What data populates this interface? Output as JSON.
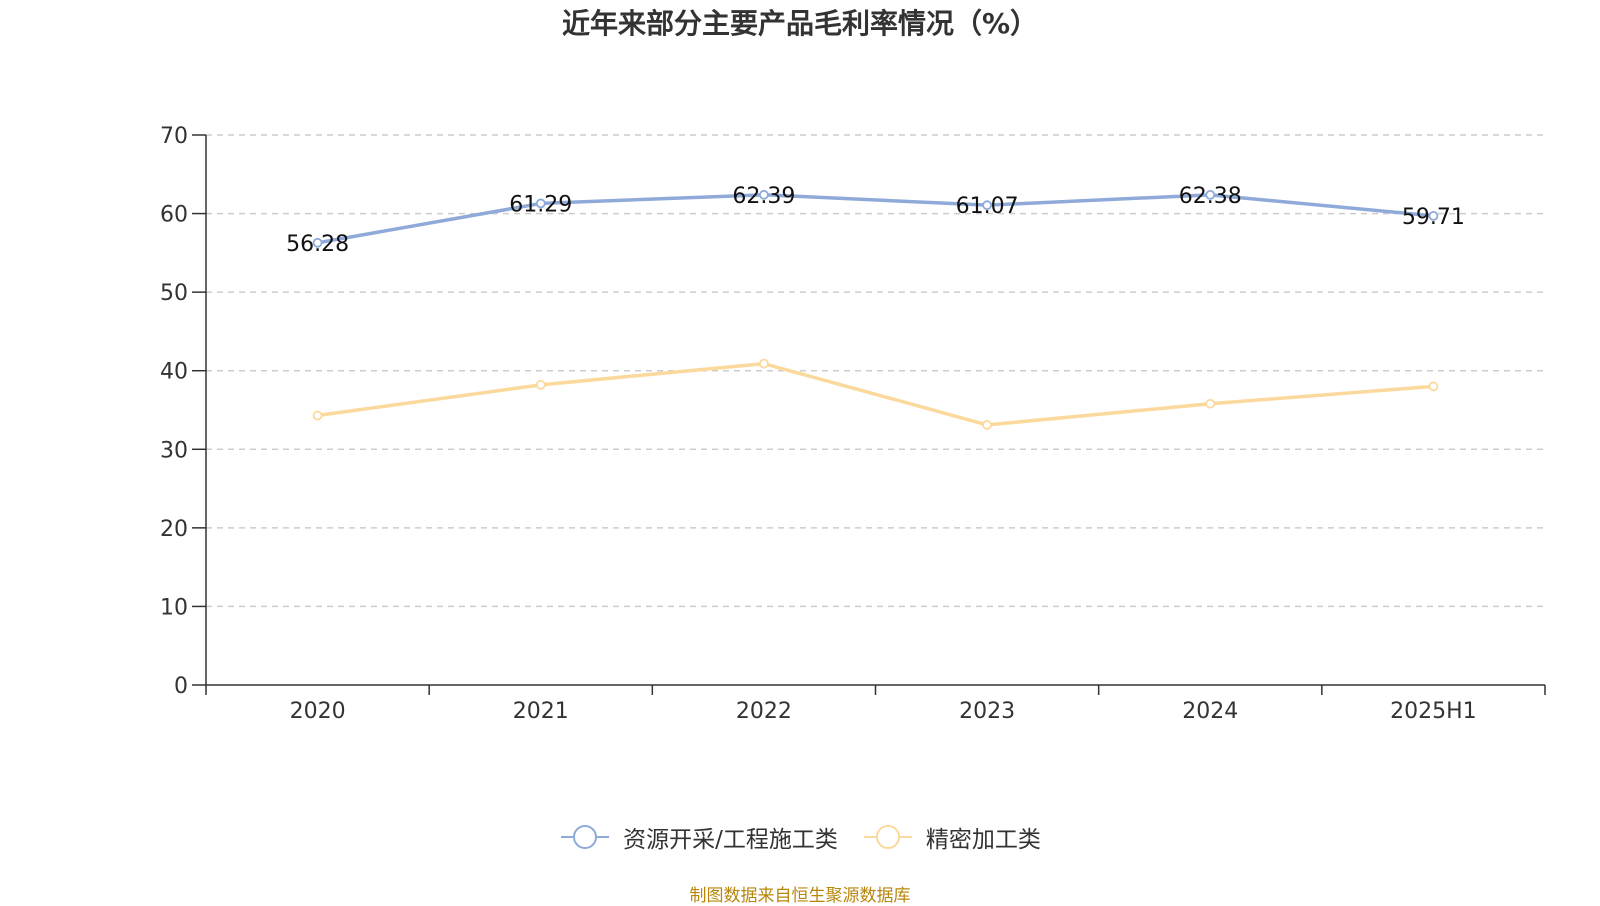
{
  "chart_data": {
    "type": "line",
    "title": "近年来部分主要产品毛利率情况（%）",
    "categories": [
      "2020",
      "2021",
      "2022",
      "2023",
      "2024",
      "2025H1"
    ],
    "ylim": [
      0,
      70
    ],
    "yticks": [
      "0",
      "10",
      "20",
      "30",
      "40",
      "50",
      "60",
      "70"
    ],
    "grid": true,
    "legend_position": "bottom",
    "series": [
      {
        "name": "资源开采/工程施工类",
        "color": "#8faad8",
        "values": [
          56.28,
          61.29,
          62.39,
          61.07,
          62.38,
          59.71
        ],
        "labels": [
          "56.28",
          "61.29",
          "62.39",
          "61.07",
          "62.38",
          "59.71"
        ]
      },
      {
        "name": "精密加工类",
        "color": "#fbd99c",
        "values": [
          34.3,
          38.2,
          40.9,
          33.1,
          35.8,
          38.0
        ]
      }
    ]
  },
  "source": "制图数据来自恒生聚源数据库"
}
